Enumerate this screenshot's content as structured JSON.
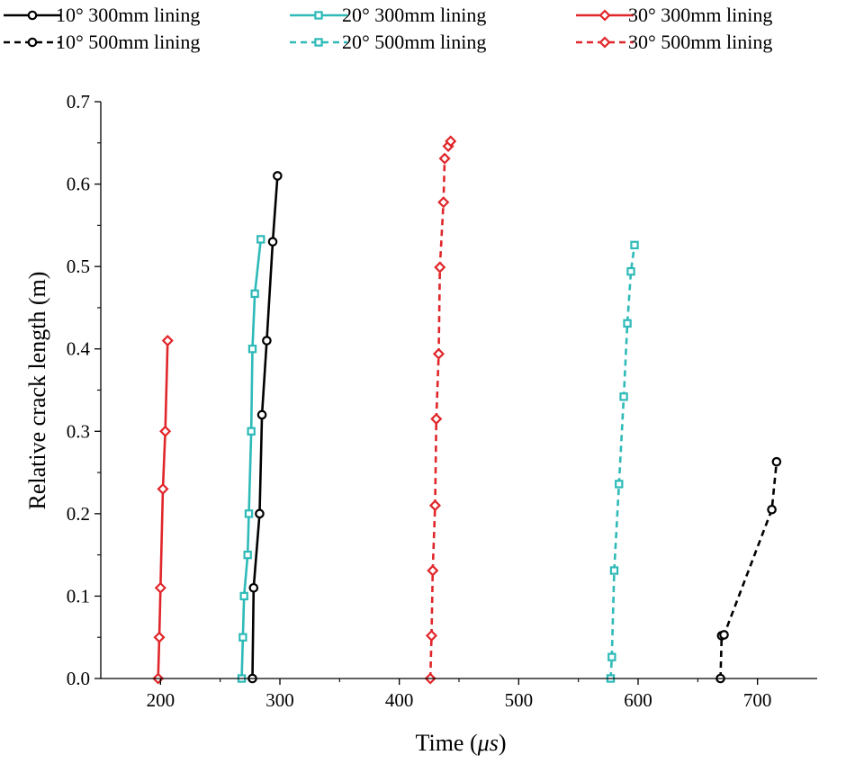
{
  "chart_data": {
    "type": "line",
    "title": "",
    "xlabel": "Time (",
    "xlabel_unit": "μs",
    "xlabel_end": ")",
    "ylabel": "Relative crack length (m)",
    "xlim": [
      150,
      750
    ],
    "ylim": [
      0,
      0.7
    ],
    "x_ticks": [
      200,
      300,
      400,
      500,
      600,
      700
    ],
    "y_ticks": [
      0.0,
      0.1,
      0.2,
      0.3,
      0.4,
      0.5,
      0.6,
      0.7
    ],
    "y_tick_labels": [
      "0.0",
      "0.1",
      "0.2",
      "0.3",
      "0.4",
      "0.5",
      "0.6",
      "0.7"
    ],
    "grid": false,
    "legend_position": "top",
    "series": [
      {
        "name": "10° 300mm lining",
        "color": "#000000",
        "dash": "solid",
        "marker": "circle",
        "x": [
          277,
          278,
          283,
          285,
          289,
          294,
          298
        ],
        "y": [
          0.0,
          0.11,
          0.2,
          0.32,
          0.41,
          0.53,
          0.61
        ]
      },
      {
        "name": "20° 300mm lining",
        "color": "#2EBAB8",
        "dash": "solid",
        "marker": "square",
        "x": [
          268,
          269,
          270,
          273,
          274,
          276,
          277,
          279,
          284
        ],
        "y": [
          0.0,
          0.05,
          0.1,
          0.15,
          0.2,
          0.3,
          0.4,
          0.467,
          0.533
        ]
      },
      {
        "name": "30° 300mm lining",
        "color": "#E0262A",
        "dash": "solid",
        "marker": "diamond",
        "x": [
          198,
          199,
          200,
          202,
          204,
          206
        ],
        "y": [
          0.0,
          0.05,
          0.11,
          0.23,
          0.3,
          0.41
        ]
      },
      {
        "name": "10° 500mm lining",
        "color": "#000000",
        "dash": "dashed",
        "marker": "circle",
        "x": [
          669,
          670,
          672,
          712,
          716
        ],
        "y": [
          0.0,
          0.052,
          0.053,
          0.205,
          0.263
        ]
      },
      {
        "name": "20° 500mm lining",
        "color": "#2EBAB8",
        "dash": "dashed",
        "marker": "square",
        "x": [
          577,
          578,
          580,
          584,
          588,
          591,
          594,
          597
        ],
        "y": [
          0.0,
          0.026,
          0.131,
          0.236,
          0.342,
          0.431,
          0.494,
          0.526
        ]
      },
      {
        "name": "30° 500mm lining",
        "color": "#E0262A",
        "dash": "dashed",
        "marker": "diamond",
        "x": [
          426,
          427,
          428,
          430,
          431,
          433,
          434,
          437,
          438,
          441,
          443
        ],
        "y": [
          0.0,
          0.052,
          0.131,
          0.21,
          0.315,
          0.394,
          0.499,
          0.578,
          0.631,
          0.646,
          0.652
        ]
      }
    ]
  }
}
